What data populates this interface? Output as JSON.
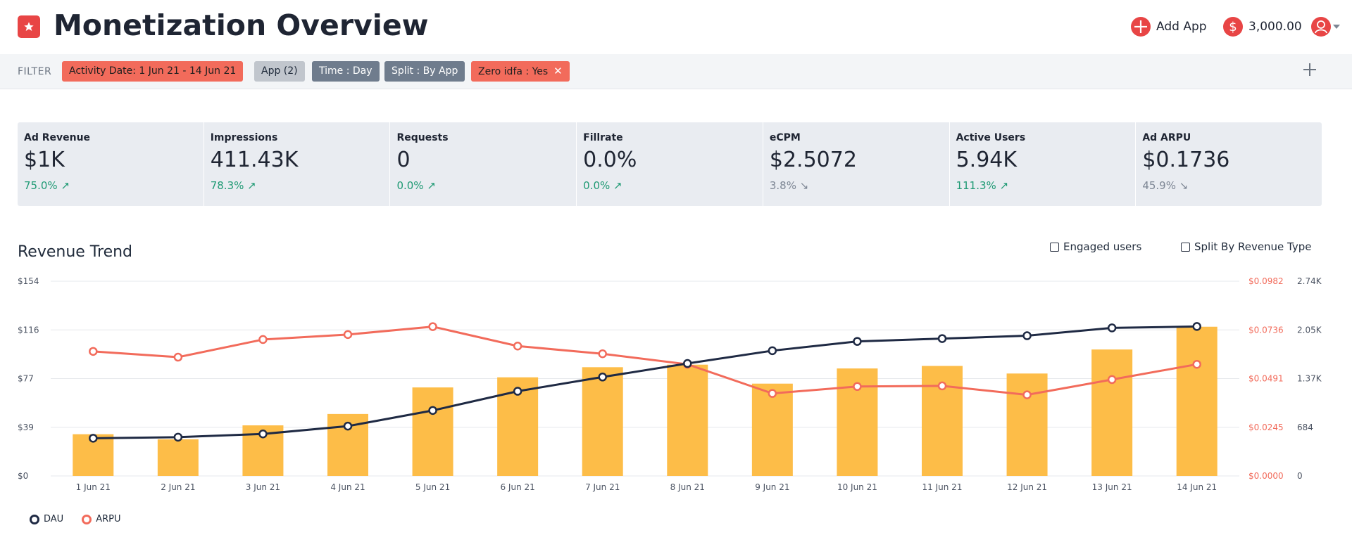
{
  "header": {
    "title": "Monetization Overview",
    "add_app_label": "Add App",
    "balance": "3,000.00",
    "colors": {
      "brand": "#e84545"
    }
  },
  "filter": {
    "label": "FILTER",
    "chips": [
      {
        "label": "Activity Date: 1 Jun 21 - 14 Jun 21",
        "style": "red"
      },
      {
        "label": "App (2)",
        "style": "grey"
      },
      {
        "label": "Time : Day",
        "style": "slate"
      },
      {
        "label": "Split : By App",
        "style": "slate"
      },
      {
        "label": "Zero idfa : Yes",
        "style": "red",
        "removable": true
      }
    ]
  },
  "kpis": [
    {
      "label": "Ad Revenue",
      "value": "$1K",
      "delta": "75.0%",
      "trend": "up"
    },
    {
      "label": "Impressions",
      "value": "411.43K",
      "delta": "78.3%",
      "trend": "up"
    },
    {
      "label": "Requests",
      "value": "0",
      "delta": "0.0%",
      "trend": "up"
    },
    {
      "label": "Fillrate",
      "value": "0.0%",
      "delta": "0.0%",
      "trend": "up"
    },
    {
      "label": "eCPM",
      "value": "$2.5072",
      "delta": "3.8%",
      "trend": "down"
    },
    {
      "label": "Active Users",
      "value": "5.94K",
      "delta": "111.3%",
      "trend": "up"
    },
    {
      "label": "Ad ARPU",
      "value": "$0.1736",
      "delta": "45.9%",
      "trend": "down"
    }
  ],
  "chart": {
    "title": "Revenue Trend",
    "engaged_label": "Engaged users",
    "split_label": "Split By Revenue Type",
    "legend": {
      "dau": "DAU",
      "arpu": "ARPU"
    }
  },
  "chart_data": {
    "type": "bar",
    "categories": [
      "1 Jun 21",
      "2 Jun 21",
      "3 Jun 21",
      "4 Jun 21",
      "5 Jun 21",
      "6 Jun 21",
      "7 Jun 21",
      "8 Jun 21",
      "9 Jun 21",
      "10 Jun 21",
      "11 Jun 21",
      "12 Jun 21",
      "13 Jun 21",
      "14 Jun 21"
    ],
    "y_left_ticks": [
      "$0",
      "$39",
      "$77",
      "$116",
      "$154"
    ],
    "y_left_range": [
      0,
      154
    ],
    "y_arpu_ticks": [
      "$0.0000",
      "$0.0245",
      "$0.0491",
      "$0.0736",
      "$0.0982"
    ],
    "y_arpu_range": [
      0,
      0.0982
    ],
    "y_dau_ticks": [
      "0",
      "684",
      "1.37K",
      "2.05K",
      "2.74K"
    ],
    "y_dau_range": [
      0,
      2736
    ],
    "series": [
      {
        "name": "Revenue",
        "kind": "bar",
        "color": "#fdbd48",
        "values": [
          33,
          29,
          40,
          49,
          70,
          78,
          86,
          88,
          73,
          85,
          87,
          81,
          100,
          118
        ]
      },
      {
        "name": "DAU",
        "kind": "line",
        "color": "#1f2a44",
        "values": [
          530,
          545,
          590,
          700,
          920,
          1190,
          1390,
          1580,
          1760,
          1890,
          1930,
          1970,
          2080,
          2100
        ]
      },
      {
        "name": "ARPU",
        "kind": "line",
        "color": "#f26b5b",
        "values": [
          0.0628,
          0.0599,
          0.0688,
          0.0713,
          0.0753,
          0.0655,
          0.0616,
          0.0563,
          0.0416,
          0.0451,
          0.0454,
          0.0409,
          0.0486,
          0.0563
        ]
      }
    ],
    "grid": true,
    "legend_position": "bottom-left"
  }
}
